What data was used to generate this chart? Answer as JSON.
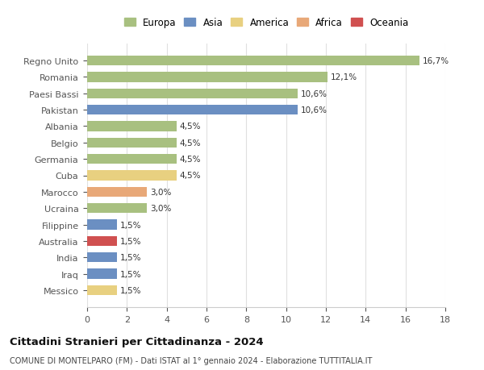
{
  "categories": [
    "Messico",
    "Iraq",
    "India",
    "Australia",
    "Filippine",
    "Ucraina",
    "Marocco",
    "Cuba",
    "Germania",
    "Belgio",
    "Albania",
    "Pakistan",
    "Paesi Bassi",
    "Romania",
    "Regno Unito"
  ],
  "values": [
    1.5,
    1.5,
    1.5,
    1.5,
    1.5,
    3.0,
    3.0,
    4.5,
    4.5,
    4.5,
    4.5,
    10.6,
    10.6,
    12.1,
    16.7
  ],
  "continents": [
    "America",
    "Asia",
    "Asia",
    "Oceania",
    "Asia",
    "Europa",
    "Africa",
    "America",
    "Europa",
    "Europa",
    "Europa",
    "Asia",
    "Europa",
    "Europa",
    "Europa"
  ],
  "labels": [
    "1,5%",
    "1,5%",
    "1,5%",
    "1,5%",
    "1,5%",
    "3,0%",
    "3,0%",
    "4,5%",
    "4,5%",
    "4,5%",
    "4,5%",
    "10,6%",
    "10,6%",
    "12,1%",
    "16,7%"
  ],
  "continent_colors": {
    "Europa": "#a8c080",
    "Asia": "#6b8fc2",
    "America": "#e8d080",
    "Africa": "#e8a878",
    "Oceania": "#d05050"
  },
  "legend_order": [
    "Europa",
    "Asia",
    "America",
    "Africa",
    "Oceania"
  ],
  "title": "Cittadini Stranieri per Cittadinanza - 2024",
  "subtitle": "COMUNE DI MONTELPARO (FM) - Dati ISTAT al 1° gennaio 2024 - Elaborazione TUTTITALIA.IT",
  "xlim": [
    0,
    18
  ],
  "xticks": [
    0,
    2,
    4,
    6,
    8,
    10,
    12,
    14,
    16,
    18
  ],
  "background_color": "#ffffff",
  "grid_color": "#e0e0e0"
}
